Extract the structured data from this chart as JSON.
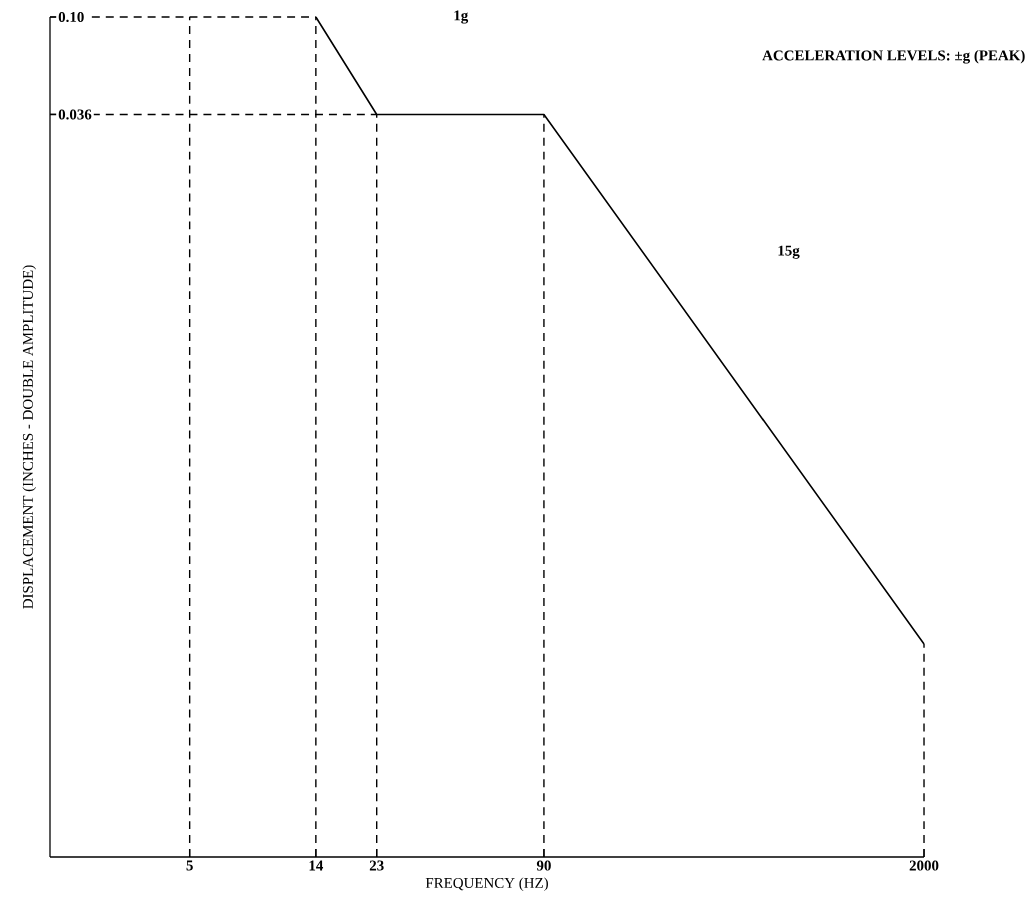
{
  "chart_data": {
    "type": "line",
    "xlabel": "FREQUENCY (HZ)",
    "ylabel": "DISPLACEMENT (INCHES - DOUBLE AMPLITUDE)",
    "log": "xy",
    "xlim": [
      1.6,
      2000
    ],
    "ylim": [
      1.5e-05,
      0.1
    ],
    "xticks": [
      5,
      14,
      23,
      90,
      2000
    ],
    "yticks": [
      {
        "value": 0.1,
        "label": "0.10"
      },
      0.036
    ],
    "series": [
      {
        "color": "#000000",
        "x": [
          14,
          23,
          90,
          2000
        ],
        "values": [
          0.1,
          0.036,
          0.036,
          0.00014
        ]
      }
    ],
    "line_style": "solid",
    "marker": "none",
    "grid": false,
    "ref_lines": [
      {
        "axis": "y",
        "value": 0.1,
        "line_style": "dashed"
      },
      {
        "axis": "y",
        "value": 0.036,
        "line_style": "dashed"
      },
      {
        "axis": "x",
        "value": 5,
        "line_style": "dashed"
      },
      {
        "axis": "x",
        "value": 14,
        "line_style": "dashed"
      },
      {
        "axis": "x",
        "value": 23,
        "line_style": "dashed"
      },
      {
        "axis": "x",
        "value": 90,
        "line_style": "dashed"
      },
      {
        "axis": "x",
        "value": 2000,
        "line_style": "dashed"
      }
    ],
    "annotations": [
      "1g",
      "ACCELERATION LEVELS: ±g (PEAK)",
      "15g"
    ]
  }
}
